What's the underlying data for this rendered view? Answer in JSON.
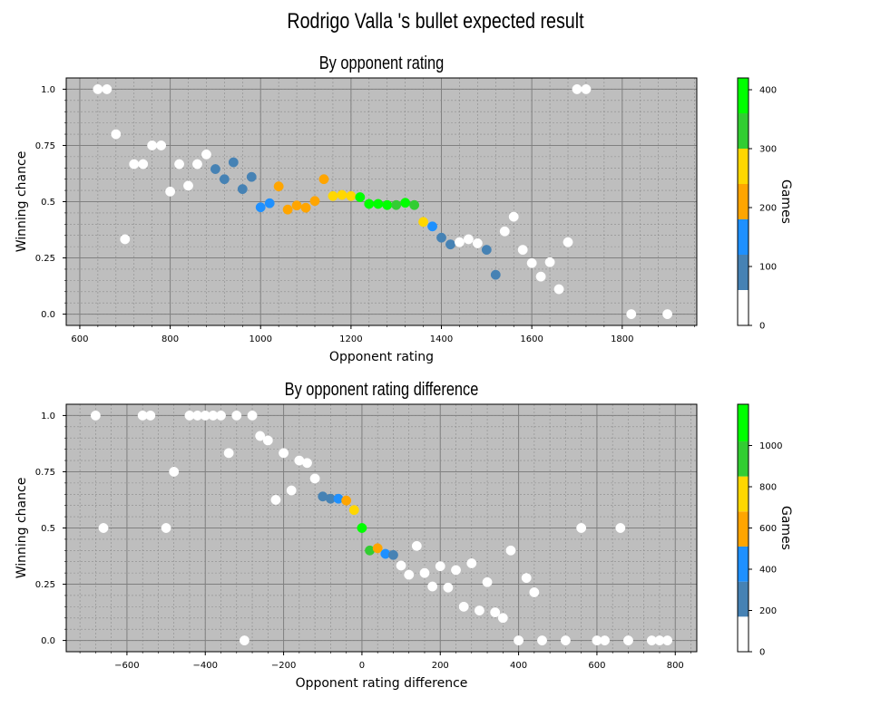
{
  "title": "Rodrigo Valla 's bullet expected result",
  "colorbar_label": "Games",
  "point_style": {
    "edge_color": "#ffffff"
  },
  "chart_data": [
    {
      "type": "scatter",
      "title": "By opponent rating",
      "xlabel": "Opponent rating",
      "ylabel": "Winning chance",
      "xlim": [
        570,
        1965
      ],
      "ylim": [
        -0.05,
        1.05
      ],
      "x_ticks": [
        600,
        800,
        1000,
        1200,
        1400,
        1600,
        1800
      ],
      "y_ticks": [
        0.0,
        0.25,
        0.5,
        0.75,
        1.0
      ],
      "y_tick_labels": [
        "0.0",
        "0.25",
        "0.5",
        "0.75",
        "1.0"
      ],
      "grid": true,
      "colorbar": {
        "label": "Games",
        "range": [
          0,
          420
        ],
        "ticks": [
          0,
          100,
          200,
          300,
          400
        ],
        "bins": [
          {
            "from": 0,
            "to": 60,
            "color": "#ffffff"
          },
          {
            "from": 60,
            "to": 120,
            "color": "#4682b4"
          },
          {
            "from": 120,
            "to": 180,
            "color": "#1e90ff"
          },
          {
            "from": 180,
            "to": 240,
            "color": "#ffa500"
          },
          {
            "from": 240,
            "to": 300,
            "color": "#ffd700"
          },
          {
            "from": 300,
            "to": 360,
            "color": "#32cd32"
          },
          {
            "from": 360,
            "to": 420,
            "color": "#00ff00"
          }
        ]
      },
      "points": [
        {
          "x": 640,
          "y": 1.0,
          "color": "#ffffff"
        },
        {
          "x": 660,
          "y": 1.0,
          "color": "#ffffff"
        },
        {
          "x": 680,
          "y": 0.8,
          "color": "#ffffff"
        },
        {
          "x": 700,
          "y": 0.333,
          "color": "#ffffff"
        },
        {
          "x": 720,
          "y": 0.667,
          "color": "#ffffff"
        },
        {
          "x": 740,
          "y": 0.667,
          "color": "#ffffff"
        },
        {
          "x": 760,
          "y": 0.75,
          "color": "#ffffff"
        },
        {
          "x": 780,
          "y": 0.75,
          "color": "#ffffff"
        },
        {
          "x": 800,
          "y": 0.545,
          "color": "#ffffff"
        },
        {
          "x": 820,
          "y": 0.667,
          "color": "#ffffff"
        },
        {
          "x": 840,
          "y": 0.571,
          "color": "#ffffff"
        },
        {
          "x": 860,
          "y": 0.667,
          "color": "#ffffff"
        },
        {
          "x": 880,
          "y": 0.71,
          "color": "#ffffff"
        },
        {
          "x": 900,
          "y": 0.645,
          "color": "#4682b4"
        },
        {
          "x": 920,
          "y": 0.6,
          "color": "#4682b4"
        },
        {
          "x": 940,
          "y": 0.675,
          "color": "#4682b4"
        },
        {
          "x": 960,
          "y": 0.556,
          "color": "#4682b4"
        },
        {
          "x": 980,
          "y": 0.61,
          "color": "#4682b4"
        },
        {
          "x": 1000,
          "y": 0.475,
          "color": "#1e90ff"
        },
        {
          "x": 1020,
          "y": 0.493,
          "color": "#1e90ff"
        },
        {
          "x": 1040,
          "y": 0.568,
          "color": "#ffa500"
        },
        {
          "x": 1060,
          "y": 0.465,
          "color": "#ffa500"
        },
        {
          "x": 1080,
          "y": 0.483,
          "color": "#ffa500"
        },
        {
          "x": 1100,
          "y": 0.473,
          "color": "#ffa500"
        },
        {
          "x": 1120,
          "y": 0.503,
          "color": "#ffa500"
        },
        {
          "x": 1140,
          "y": 0.6,
          "color": "#ffa500"
        },
        {
          "x": 1160,
          "y": 0.525,
          "color": "#ffd700"
        },
        {
          "x": 1180,
          "y": 0.53,
          "color": "#ffd700"
        },
        {
          "x": 1200,
          "y": 0.525,
          "color": "#ffd700"
        },
        {
          "x": 1220,
          "y": 0.52,
          "color": "#00ff00"
        },
        {
          "x": 1240,
          "y": 0.49,
          "color": "#00ff00"
        },
        {
          "x": 1260,
          "y": 0.49,
          "color": "#00ff00"
        },
        {
          "x": 1280,
          "y": 0.485,
          "color": "#00ff00"
        },
        {
          "x": 1300,
          "y": 0.485,
          "color": "#32cd32"
        },
        {
          "x": 1320,
          "y": 0.495,
          "color": "#00ff00"
        },
        {
          "x": 1340,
          "y": 0.485,
          "color": "#32cd32"
        },
        {
          "x": 1360,
          "y": 0.41,
          "color": "#ffd700"
        },
        {
          "x": 1380,
          "y": 0.39,
          "color": "#1e90ff"
        },
        {
          "x": 1400,
          "y": 0.34,
          "color": "#4682b4"
        },
        {
          "x": 1420,
          "y": 0.31,
          "color": "#4682b4"
        },
        {
          "x": 1440,
          "y": 0.32,
          "color": "#ffffff"
        },
        {
          "x": 1460,
          "y": 0.333,
          "color": "#ffffff"
        },
        {
          "x": 1480,
          "y": 0.315,
          "color": "#ffffff"
        },
        {
          "x": 1500,
          "y": 0.286,
          "color": "#4682b4"
        },
        {
          "x": 1520,
          "y": 0.175,
          "color": "#4682b4"
        },
        {
          "x": 1540,
          "y": 0.368,
          "color": "#ffffff"
        },
        {
          "x": 1560,
          "y": 0.433,
          "color": "#ffffff"
        },
        {
          "x": 1580,
          "y": 0.286,
          "color": "#ffffff"
        },
        {
          "x": 1600,
          "y": 0.227,
          "color": "#ffffff"
        },
        {
          "x": 1620,
          "y": 0.167,
          "color": "#ffffff"
        },
        {
          "x": 1640,
          "y": 0.231,
          "color": "#ffffff"
        },
        {
          "x": 1660,
          "y": 0.111,
          "color": "#ffffff"
        },
        {
          "x": 1680,
          "y": 0.32,
          "color": "#ffffff"
        },
        {
          "x": 1700,
          "y": 1.0,
          "color": "#ffffff"
        },
        {
          "x": 1720,
          "y": 1.0,
          "color": "#ffffff"
        },
        {
          "x": 1820,
          "y": 0.0,
          "color": "#ffffff"
        },
        {
          "x": 1900,
          "y": 0.0,
          "color": "#ffffff"
        }
      ]
    },
    {
      "type": "scatter",
      "title": "By opponent rating difference",
      "xlabel": "Opponent rating difference",
      "ylabel": "Winning chance",
      "xlim": [
        -755,
        855
      ],
      "ylim": [
        -0.05,
        1.05
      ],
      "x_ticks": [
        -600,
        -400,
        -200,
        0,
        200,
        400,
        600,
        800
      ],
      "x_tick_labels": [
        "−600",
        "−400",
        "−200",
        "0",
        "200",
        "400",
        "600",
        "800"
      ],
      "y_ticks": [
        0.0,
        0.25,
        0.5,
        0.75,
        1.0
      ],
      "y_tick_labels": [
        "0.0",
        "0.25",
        "0.5",
        "0.75",
        "1.0"
      ],
      "grid": true,
      "colorbar": {
        "label": "Games",
        "range": [
          0,
          1200
        ],
        "ticks": [
          0,
          200,
          400,
          600,
          800,
          1000
        ],
        "bins": [
          {
            "from": 0,
            "to": 170,
            "color": "#ffffff"
          },
          {
            "from": 170,
            "to": 340,
            "color": "#4682b4"
          },
          {
            "from": 340,
            "to": 510,
            "color": "#1e90ff"
          },
          {
            "from": 510,
            "to": 680,
            "color": "#ffa500"
          },
          {
            "from": 680,
            "to": 850,
            "color": "#ffd700"
          },
          {
            "from": 850,
            "to": 1020,
            "color": "#32cd32"
          },
          {
            "from": 1020,
            "to": 1200,
            "color": "#00ff00"
          }
        ]
      },
      "points": [
        {
          "x": -680,
          "y": 1.0,
          "color": "#ffffff"
        },
        {
          "x": -660,
          "y": 0.5,
          "color": "#ffffff"
        },
        {
          "x": -560,
          "y": 1.0,
          "color": "#ffffff"
        },
        {
          "x": -540,
          "y": 1.0,
          "color": "#ffffff"
        },
        {
          "x": -500,
          "y": 0.5,
          "color": "#ffffff"
        },
        {
          "x": -480,
          "y": 0.75,
          "color": "#ffffff"
        },
        {
          "x": -440,
          "y": 1.0,
          "color": "#ffffff"
        },
        {
          "x": -420,
          "y": 1.0,
          "color": "#ffffff"
        },
        {
          "x": -400,
          "y": 1.0,
          "color": "#ffffff"
        },
        {
          "x": -380,
          "y": 1.0,
          "color": "#ffffff"
        },
        {
          "x": -360,
          "y": 1.0,
          "color": "#ffffff"
        },
        {
          "x": -340,
          "y": 0.833,
          "color": "#ffffff"
        },
        {
          "x": -320,
          "y": 1.0,
          "color": "#ffffff"
        },
        {
          "x": -300,
          "y": 0.0,
          "color": "#ffffff"
        },
        {
          "x": -280,
          "y": 1.0,
          "color": "#ffffff"
        },
        {
          "x": -260,
          "y": 0.909,
          "color": "#ffffff"
        },
        {
          "x": -240,
          "y": 0.889,
          "color": "#ffffff"
        },
        {
          "x": -220,
          "y": 0.625,
          "color": "#ffffff"
        },
        {
          "x": -200,
          "y": 0.833,
          "color": "#ffffff"
        },
        {
          "x": -180,
          "y": 0.667,
          "color": "#ffffff"
        },
        {
          "x": -160,
          "y": 0.8,
          "color": "#ffffff"
        },
        {
          "x": -140,
          "y": 0.789,
          "color": "#ffffff"
        },
        {
          "x": -120,
          "y": 0.72,
          "color": "#ffffff"
        },
        {
          "x": -100,
          "y": 0.64,
          "color": "#4682b4"
        },
        {
          "x": -80,
          "y": 0.63,
          "color": "#4682b4"
        },
        {
          "x": -60,
          "y": 0.63,
          "color": "#1e90ff"
        },
        {
          "x": -40,
          "y": 0.622,
          "color": "#ffa500"
        },
        {
          "x": -20,
          "y": 0.58,
          "color": "#ffd700"
        },
        {
          "x": 0,
          "y": 0.5,
          "color": "#00ff00"
        },
        {
          "x": 20,
          "y": 0.4,
          "color": "#32cd32"
        },
        {
          "x": 40,
          "y": 0.41,
          "color": "#ffa500"
        },
        {
          "x": 60,
          "y": 0.385,
          "color": "#1e90ff"
        },
        {
          "x": 80,
          "y": 0.38,
          "color": "#4682b4"
        },
        {
          "x": 100,
          "y": 0.333,
          "color": "#ffffff"
        },
        {
          "x": 120,
          "y": 0.292,
          "color": "#ffffff"
        },
        {
          "x": 140,
          "y": 0.42,
          "color": "#ffffff"
        },
        {
          "x": 160,
          "y": 0.3,
          "color": "#ffffff"
        },
        {
          "x": 180,
          "y": 0.24,
          "color": "#ffffff"
        },
        {
          "x": 200,
          "y": 0.33,
          "color": "#ffffff"
        },
        {
          "x": 220,
          "y": 0.235,
          "color": "#ffffff"
        },
        {
          "x": 240,
          "y": 0.313,
          "color": "#ffffff"
        },
        {
          "x": 260,
          "y": 0.15,
          "color": "#ffffff"
        },
        {
          "x": 280,
          "y": 0.343,
          "color": "#ffffff"
        },
        {
          "x": 300,
          "y": 0.133,
          "color": "#ffffff"
        },
        {
          "x": 320,
          "y": 0.259,
          "color": "#ffffff"
        },
        {
          "x": 340,
          "y": 0.125,
          "color": "#ffffff"
        },
        {
          "x": 360,
          "y": 0.1,
          "color": "#ffffff"
        },
        {
          "x": 380,
          "y": 0.4,
          "color": "#ffffff"
        },
        {
          "x": 400,
          "y": 0.0,
          "color": "#ffffff"
        },
        {
          "x": 420,
          "y": 0.278,
          "color": "#ffffff"
        },
        {
          "x": 440,
          "y": 0.214,
          "color": "#ffffff"
        },
        {
          "x": 460,
          "y": 0.0,
          "color": "#ffffff"
        },
        {
          "x": 520,
          "y": 0.0,
          "color": "#ffffff"
        },
        {
          "x": 560,
          "y": 0.5,
          "color": "#ffffff"
        },
        {
          "x": 600,
          "y": 0.0,
          "color": "#ffffff"
        },
        {
          "x": 620,
          "y": 0.0,
          "color": "#ffffff"
        },
        {
          "x": 660,
          "y": 0.5,
          "color": "#ffffff"
        },
        {
          "x": 680,
          "y": 0.0,
          "color": "#ffffff"
        },
        {
          "x": 740,
          "y": 0.0,
          "color": "#ffffff"
        },
        {
          "x": 760,
          "y": 0.0,
          "color": "#ffffff"
        },
        {
          "x": 780,
          "y": 0.0,
          "color": "#ffffff"
        }
      ]
    }
  ]
}
